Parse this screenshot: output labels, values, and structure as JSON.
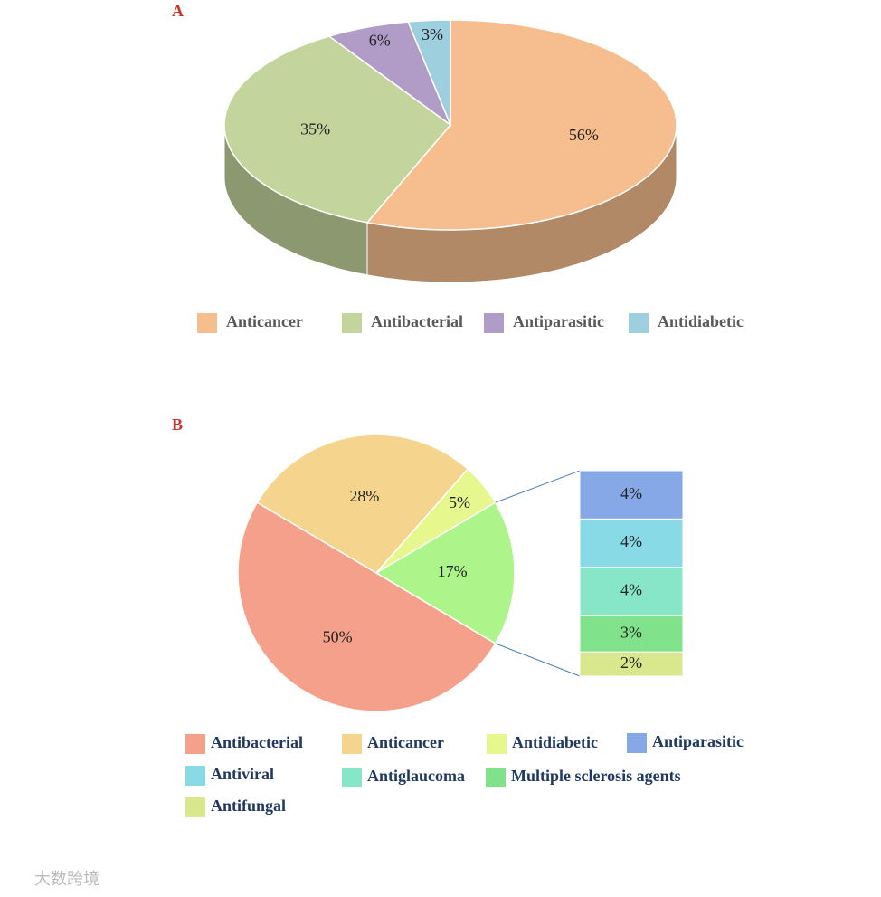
{
  "chart_data": [
    {
      "type": "pie3d",
      "panel": "A",
      "categories": [
        "Anticancer",
        "Antibacterial",
        "Antiparasitic",
        "Antidiabetic"
      ],
      "values": [
        56,
        35,
        6,
        3
      ],
      "value_labels": [
        "56%",
        "35%",
        "6%",
        "3%"
      ],
      "colors": [
        "#f6be8f",
        "#c3d59c",
        "#b09cc6",
        "#9dcfdf"
      ]
    },
    {
      "type": "pie-of-bar",
      "panel": "B",
      "categories": [
        "Antibacterial",
        "Anticancer",
        "Antidiabetic",
        null
      ],
      "values": [
        50,
        28,
        5,
        17
      ],
      "value_labels": [
        "50%",
        "28%",
        "5%",
        "17%"
      ],
      "colors": [
        "#f4a08a",
        "#f5d48e",
        "#e6f78e",
        "#adf58a"
      ],
      "bar": {
        "categories": [
          "Antiparasitic",
          "Antiviral",
          "Antiglaucoma",
          "Multiple sclerosis agents",
          "Antifungal"
        ],
        "values": [
          4,
          4,
          4,
          3,
          2
        ],
        "value_labels": [
          "4%",
          "4%",
          "4%",
          "3%",
          "2%"
        ],
        "colors": [
          "#86a8e6",
          "#88dbe6",
          "#88e6c8",
          "#80e38c",
          "#d9e88c"
        ]
      }
    }
  ],
  "watermark": "大数跨境"
}
